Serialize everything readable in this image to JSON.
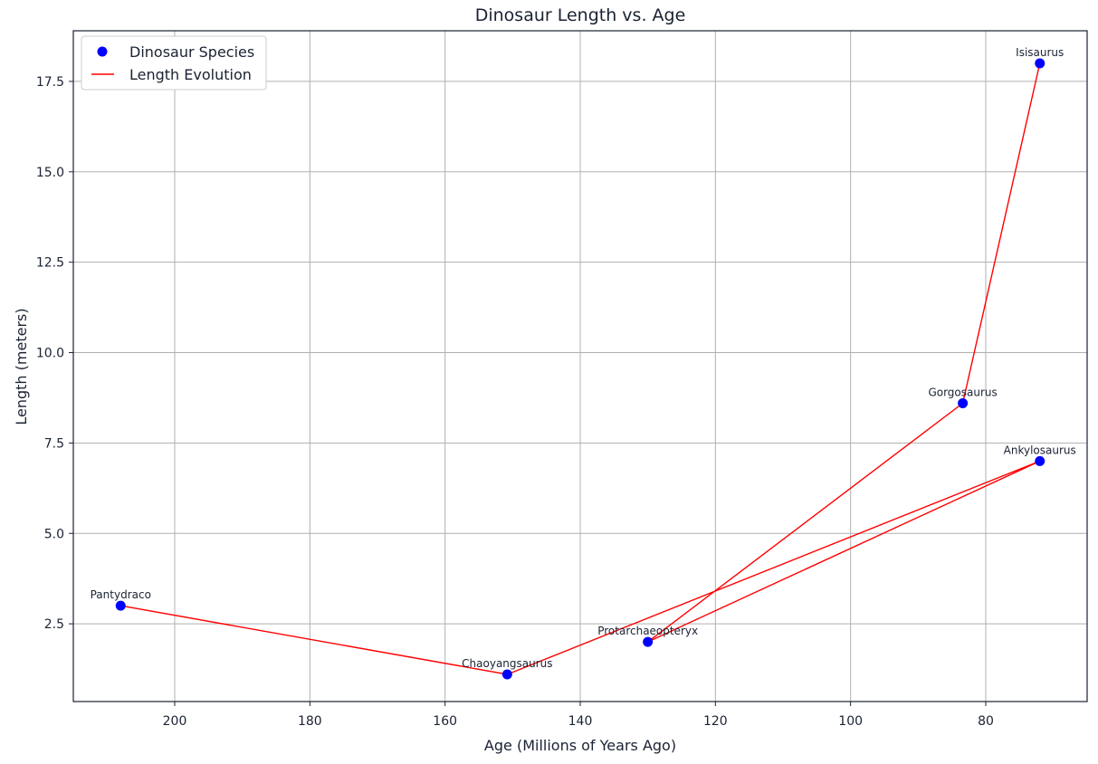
{
  "chart_data": {
    "type": "scatter",
    "title": "Dinosaur Length vs. Age",
    "xlabel": "Age (Millions of Years Ago)",
    "ylabel": "Length (meters)",
    "x_inverted": true,
    "xlim": [
      215,
      65
    ],
    "ylim": [
      0.35,
      18.9
    ],
    "xticks": [
      200,
      180,
      160,
      140,
      120,
      100,
      80
    ],
    "yticks": [
      2.5,
      5.0,
      7.5,
      10.0,
      12.5,
      15.0,
      17.5
    ],
    "xtick_labels": [
      "200",
      "180",
      "160",
      "140",
      "120",
      "100",
      "80"
    ],
    "ytick_labels": [
      "2.5",
      "5.0",
      "7.5",
      "10.0",
      "12.5",
      "15.0",
      "17.5"
    ],
    "grid": true,
    "legend_position": "top-left",
    "series": [
      {
        "name": "Dinosaur Species",
        "kind": "scatter",
        "color": "#0000ff",
        "points": [
          {
            "label": "Pantydraco",
            "x": 208,
            "y": 3.0
          },
          {
            "label": "Chaoyangsaurus",
            "x": 150.8,
            "y": 1.1
          },
          {
            "label": "Protarchaeopteryx",
            "x": 130,
            "y": 2.0
          },
          {
            "label": "Gorgosaurus",
            "x": 83.4,
            "y": 8.6
          },
          {
            "label": "Ankylosaurus",
            "x": 72,
            "y": 7.0
          },
          {
            "label": "Isisaurus",
            "x": 72,
            "y": 18.0
          }
        ]
      },
      {
        "name": "Length Evolution",
        "kind": "line",
        "color": "#ff0000",
        "points": [
          {
            "x": 208,
            "y": 3.0
          },
          {
            "x": 150.8,
            "y": 1.1
          },
          {
            "x": 72,
            "y": 7.0
          },
          {
            "x": 130,
            "y": 2.0
          },
          {
            "x": 83.4,
            "y": 8.6
          },
          {
            "x": 72,
            "y": 18.0
          }
        ]
      }
    ]
  }
}
